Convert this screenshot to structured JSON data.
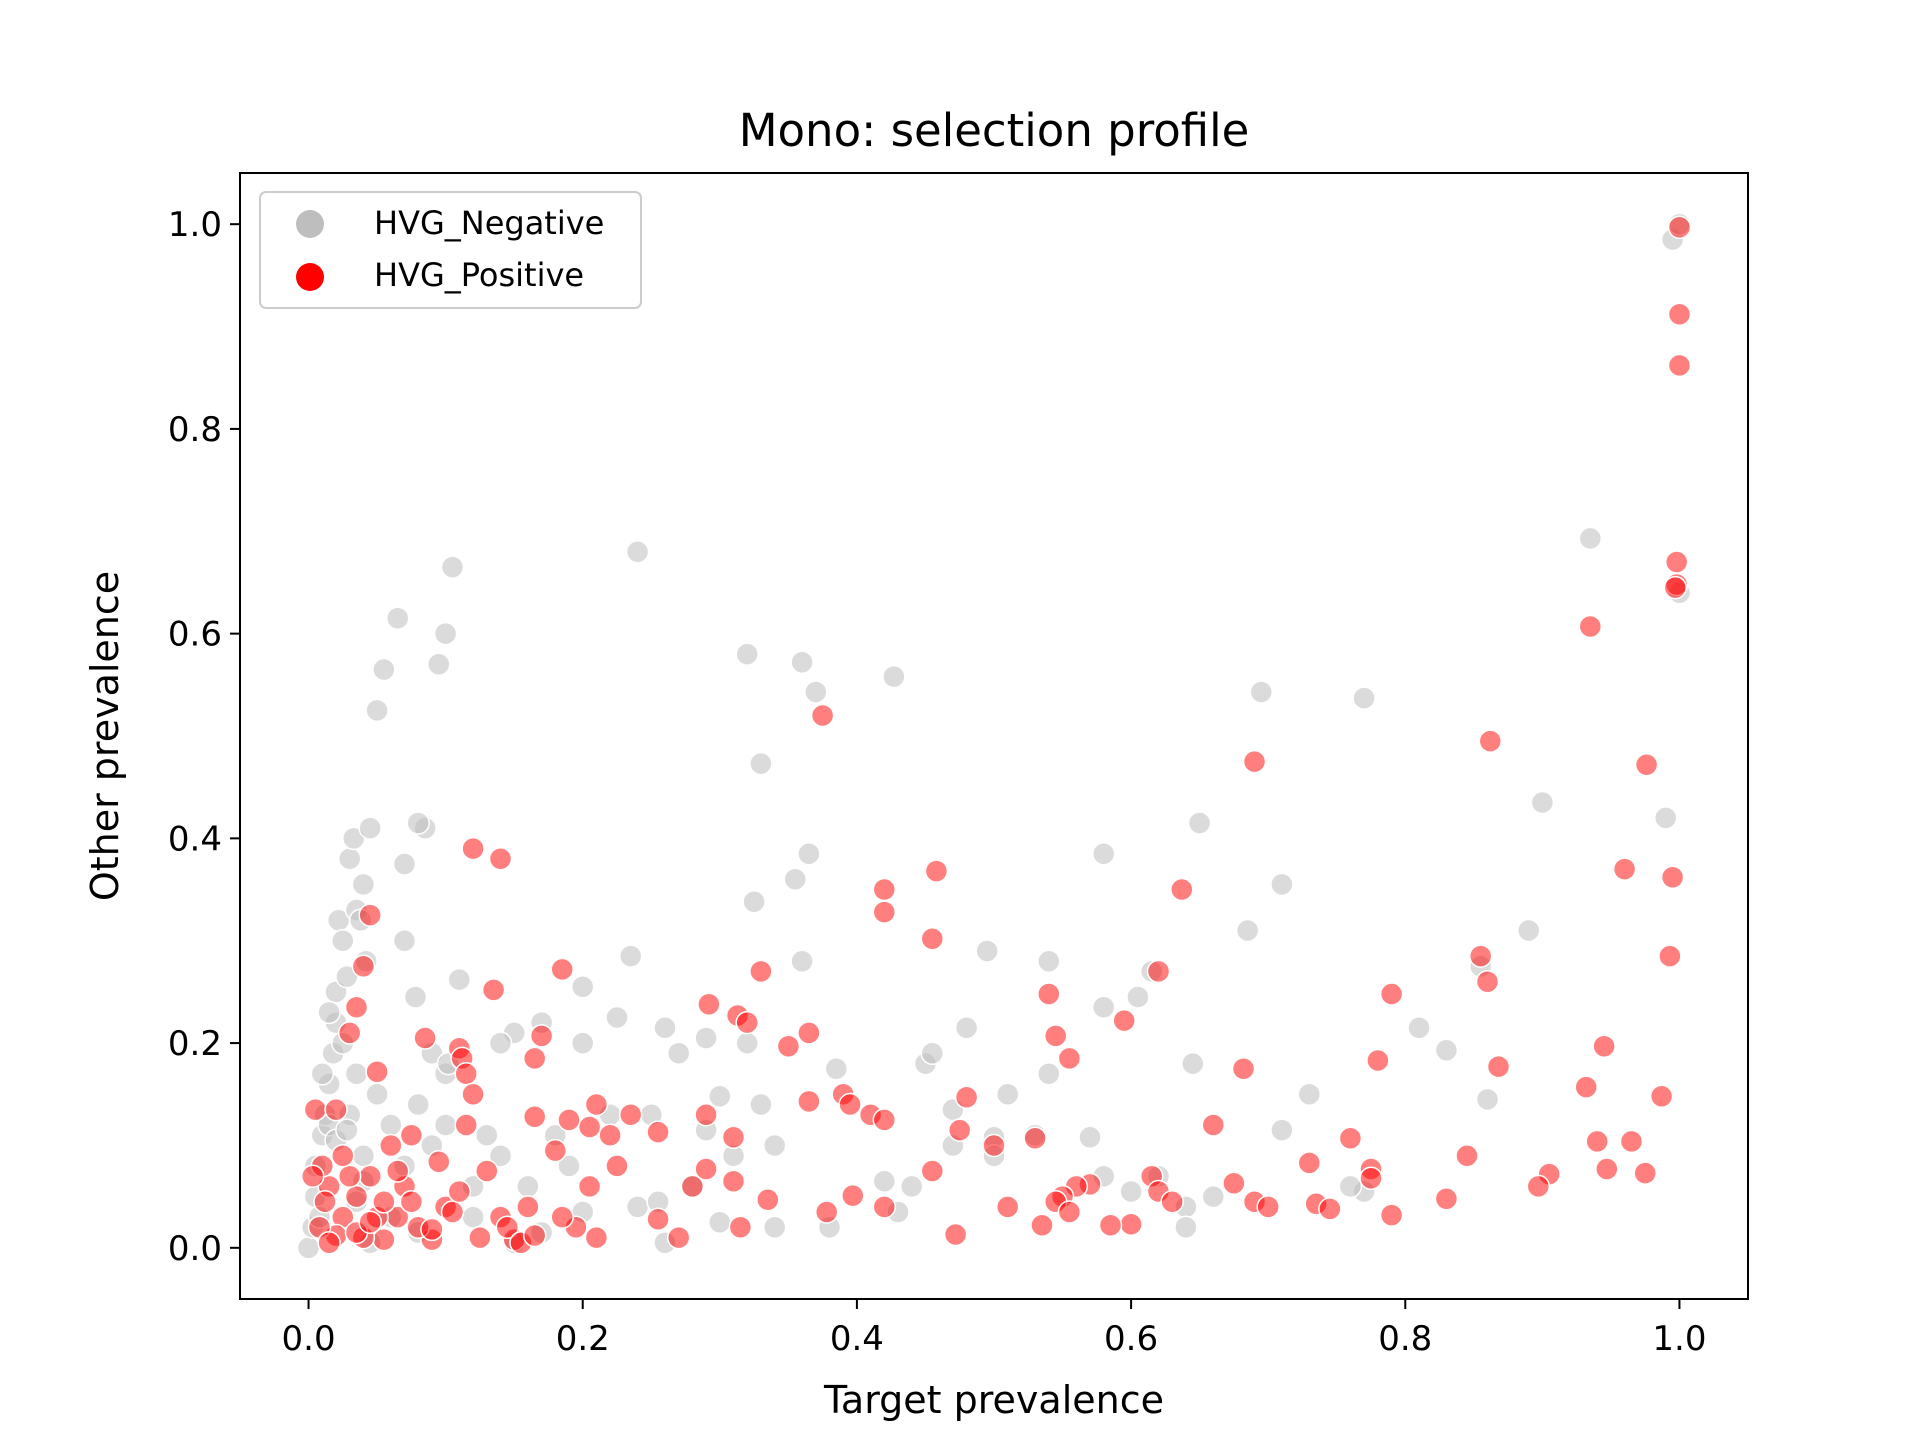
{
  "chart_data": {
    "type": "scatter",
    "title": "Mono: selection profile",
    "xlabel": "Target prevalence",
    "ylabel": "Other prevalence",
    "xlim": [
      -0.05,
      1.05
    ],
    "ylim": [
      -0.05,
      1.05
    ],
    "xticks": [
      0.0,
      0.2,
      0.4,
      0.6,
      0.8,
      1.0
    ],
    "xtick_labels": [
      "0.0",
      "0.2",
      "0.4",
      "0.6",
      "0.8",
      "1.0"
    ],
    "yticks": [
      0.0,
      0.2,
      0.4,
      0.6,
      0.8,
      1.0
    ],
    "ytick_labels": [
      "0.0",
      "0.2",
      "0.4",
      "0.6",
      "0.8",
      "1.0"
    ],
    "grid": false,
    "legend_position": "top-left",
    "series": [
      {
        "name": "HVG_Negative",
        "color": "#bebebe",
        "points": [
          [
            0.0,
            0.0
          ],
          [
            0.003,
            0.02
          ],
          [
            0.005,
            0.05
          ],
          [
            0.008,
            0.03
          ],
          [
            0.01,
            0.11
          ],
          [
            0.012,
            0.13
          ],
          [
            0.015,
            0.16
          ],
          [
            0.018,
            0.19
          ],
          [
            0.02,
            0.22
          ],
          [
            0.02,
            0.25
          ],
          [
            0.022,
            0.32
          ],
          [
            0.025,
            0.3
          ],
          [
            0.028,
            0.265
          ],
          [
            0.03,
            0.38
          ],
          [
            0.033,
            0.4
          ],
          [
            0.035,
            0.33
          ],
          [
            0.038,
            0.32
          ],
          [
            0.04,
            0.355
          ],
          [
            0.042,
            0.28
          ],
          [
            0.045,
            0.41
          ],
          [
            0.05,
            0.525
          ],
          [
            0.055,
            0.565
          ],
          [
            0.065,
            0.615
          ],
          [
            0.07,
            0.375
          ],
          [
            0.07,
            0.3
          ],
          [
            0.078,
            0.245
          ],
          [
            0.085,
            0.41
          ],
          [
            0.08,
            0.415
          ],
          [
            0.1,
            0.6
          ],
          [
            0.095,
            0.57
          ],
          [
            0.105,
            0.665
          ],
          [
            0.11,
            0.262
          ],
          [
            0.09,
            0.19
          ],
          [
            0.1,
            0.17
          ],
          [
            0.102,
            0.18
          ],
          [
            0.15,
            0.21
          ],
          [
            0.14,
            0.2
          ],
          [
            0.17,
            0.22
          ],
          [
            0.2,
            0.255
          ],
          [
            0.2,
            0.2
          ],
          [
            0.235,
            0.285
          ],
          [
            0.225,
            0.225
          ],
          [
            0.26,
            0.215
          ],
          [
            0.27,
            0.19
          ],
          [
            0.29,
            0.205
          ],
          [
            0.3,
            0.148
          ],
          [
            0.24,
            0.68
          ],
          [
            0.32,
            0.58
          ],
          [
            0.33,
            0.473
          ],
          [
            0.36,
            0.572
          ],
          [
            0.37,
            0.543
          ],
          [
            0.427,
            0.558
          ],
          [
            0.325,
            0.338
          ],
          [
            0.365,
            0.385
          ],
          [
            0.355,
            0.36
          ],
          [
            0.36,
            0.28
          ],
          [
            0.32,
            0.2
          ],
          [
            0.33,
            0.14
          ],
          [
            0.34,
            0.1
          ],
          [
            0.385,
            0.175
          ],
          [
            0.45,
            0.18
          ],
          [
            0.455,
            0.19
          ],
          [
            0.48,
            0.215
          ],
          [
            0.495,
            0.29
          ],
          [
            0.47,
            0.135
          ],
          [
            0.5,
            0.108
          ],
          [
            0.51,
            0.15
          ],
          [
            0.53,
            0.11
          ],
          [
            0.54,
            0.17
          ],
          [
            0.54,
            0.28
          ],
          [
            0.58,
            0.385
          ],
          [
            0.58,
            0.235
          ],
          [
            0.605,
            0.245
          ],
          [
            0.615,
            0.27
          ],
          [
            0.645,
            0.18
          ],
          [
            0.65,
            0.415
          ],
          [
            0.685,
            0.31
          ],
          [
            0.695,
            0.543
          ],
          [
            0.71,
            0.355
          ],
          [
            0.71,
            0.115
          ],
          [
            0.73,
            0.15
          ],
          [
            0.77,
            0.537
          ],
          [
            0.81,
            0.215
          ],
          [
            0.83,
            0.193
          ],
          [
            0.855,
            0.275
          ],
          [
            0.86,
            0.145
          ],
          [
            0.89,
            0.31
          ],
          [
            0.9,
            0.435
          ],
          [
            0.935,
            0.693
          ],
          [
            0.99,
            0.42
          ],
          [
            0.995,
            0.985
          ],
          [
            1.0,
            1.0
          ],
          [
            1.0,
            0.64
          ],
          [
            0.57,
            0.108
          ],
          [
            0.62,
            0.07
          ],
          [
            0.64,
            0.04
          ],
          [
            0.58,
            0.07
          ],
          [
            0.5,
            0.09
          ],
          [
            0.44,
            0.06
          ],
          [
            0.42,
            0.065
          ],
          [
            0.38,
            0.02
          ],
          [
            0.34,
            0.02
          ],
          [
            0.3,
            0.025
          ],
          [
            0.26,
            0.005
          ],
          [
            0.24,
            0.04
          ],
          [
            0.22,
            0.13
          ],
          [
            0.25,
            0.13
          ],
          [
            0.29,
            0.115
          ],
          [
            0.2,
            0.035
          ],
          [
            0.19,
            0.08
          ],
          [
            0.18,
            0.11
          ],
          [
            0.16,
            0.06
          ],
          [
            0.14,
            0.09
          ],
          [
            0.12,
            0.06
          ],
          [
            0.13,
            0.11
          ],
          [
            0.1,
            0.12
          ],
          [
            0.09,
            0.1
          ],
          [
            0.08,
            0.14
          ],
          [
            0.07,
            0.08
          ],
          [
            0.06,
            0.12
          ],
          [
            0.05,
            0.15
          ],
          [
            0.04,
            0.09
          ],
          [
            0.03,
            0.13
          ],
          [
            0.035,
            0.17
          ],
          [
            0.025,
            0.2
          ],
          [
            0.015,
            0.23
          ],
          [
            0.01,
            0.17
          ],
          [
            0.005,
            0.08
          ],
          [
            0.15,
            0.005
          ],
          [
            0.17,
            0.015
          ],
          [
            0.12,
            0.03
          ],
          [
            0.08,
            0.015
          ],
          [
            0.06,
            0.03
          ],
          [
            0.045,
            0.005
          ],
          [
            0.035,
            0.045
          ],
          [
            0.28,
            0.06
          ],
          [
            0.255,
            0.045
          ],
          [
            0.31,
            0.09
          ],
          [
            0.43,
            0.035
          ],
          [
            0.47,
            0.1
          ],
          [
            0.6,
            0.055
          ],
          [
            0.64,
            0.02
          ],
          [
            0.77,
            0.055
          ],
          [
            0.76,
            0.06
          ],
          [
            0.66,
            0.05
          ],
          [
            0.015,
            0.12
          ],
          [
            0.02,
            0.105
          ],
          [
            0.028,
            0.115
          ],
          [
            0.04,
            0.065
          ]
        ]
      },
      {
        "name": "HVG_Positive",
        "color": "#ff0000",
        "points": [
          [
            1.0,
            0.997
          ],
          [
            1.0,
            0.912
          ],
          [
            1.0,
            0.862
          ],
          [
            0.998,
            0.67
          ],
          [
            0.998,
            0.648
          ],
          [
            0.997,
            0.645
          ],
          [
            0.935,
            0.607
          ],
          [
            0.976,
            0.472
          ],
          [
            0.862,
            0.495
          ],
          [
            0.69,
            0.475
          ],
          [
            0.375,
            0.52
          ],
          [
            0.12,
            0.39
          ],
          [
            0.14,
            0.38
          ],
          [
            0.458,
            0.368
          ],
          [
            0.42,
            0.35
          ],
          [
            0.42,
            0.328
          ],
          [
            0.455,
            0.302
          ],
          [
            0.637,
            0.35
          ],
          [
            0.96,
            0.37
          ],
          [
            0.995,
            0.362
          ],
          [
            0.993,
            0.285
          ],
          [
            0.855,
            0.285
          ],
          [
            0.86,
            0.26
          ],
          [
            0.045,
            0.325
          ],
          [
            0.04,
            0.275
          ],
          [
            0.035,
            0.235
          ],
          [
            0.03,
            0.21
          ],
          [
            0.05,
            0.172
          ],
          [
            0.135,
            0.252
          ],
          [
            0.185,
            0.272
          ],
          [
            0.33,
            0.27
          ],
          [
            0.292,
            0.238
          ],
          [
            0.313,
            0.227
          ],
          [
            0.32,
            0.22
          ],
          [
            0.365,
            0.21
          ],
          [
            0.35,
            0.197
          ],
          [
            0.54,
            0.248
          ],
          [
            0.545,
            0.207
          ],
          [
            0.555,
            0.185
          ],
          [
            0.595,
            0.222
          ],
          [
            0.62,
            0.27
          ],
          [
            0.79,
            0.248
          ],
          [
            0.78,
            0.183
          ],
          [
            0.945,
            0.197
          ],
          [
            0.868,
            0.177
          ],
          [
            0.682,
            0.175
          ],
          [
            0.932,
            0.157
          ],
          [
            0.987,
            0.148
          ],
          [
            0.085,
            0.205
          ],
          [
            0.11,
            0.195
          ],
          [
            0.112,
            0.185
          ],
          [
            0.115,
            0.17
          ],
          [
            0.12,
            0.15
          ],
          [
            0.165,
            0.185
          ],
          [
            0.17,
            0.207
          ],
          [
            0.21,
            0.14
          ],
          [
            0.365,
            0.143
          ],
          [
            0.39,
            0.15
          ],
          [
            0.395,
            0.14
          ],
          [
            0.41,
            0.13
          ],
          [
            0.42,
            0.125
          ],
          [
            0.48,
            0.147
          ],
          [
            0.475,
            0.115
          ],
          [
            0.5,
            0.1
          ],
          [
            0.53,
            0.107
          ],
          [
            0.66,
            0.12
          ],
          [
            0.76,
            0.107
          ],
          [
            0.845,
            0.09
          ],
          [
            0.94,
            0.104
          ],
          [
            0.965,
            0.104
          ],
          [
            0.975,
            0.073
          ],
          [
            0.947,
            0.077
          ],
          [
            0.905,
            0.072
          ],
          [
            0.897,
            0.06
          ],
          [
            0.79,
            0.032
          ],
          [
            0.83,
            0.048
          ],
          [
            0.775,
            0.077
          ],
          [
            0.775,
            0.068
          ],
          [
            0.735,
            0.043
          ],
          [
            0.745,
            0.038
          ],
          [
            0.73,
            0.083
          ],
          [
            0.69,
            0.045
          ],
          [
            0.7,
            0.04
          ],
          [
            0.675,
            0.063
          ],
          [
            0.615,
            0.07
          ],
          [
            0.62,
            0.055
          ],
          [
            0.63,
            0.045
          ],
          [
            0.6,
            0.023
          ],
          [
            0.585,
            0.022
          ],
          [
            0.57,
            0.062
          ],
          [
            0.56,
            0.06
          ],
          [
            0.55,
            0.05
          ],
          [
            0.545,
            0.045
          ],
          [
            0.555,
            0.035
          ],
          [
            0.535,
            0.022
          ],
          [
            0.51,
            0.04
          ],
          [
            0.472,
            0.013
          ],
          [
            0.455,
            0.075
          ],
          [
            0.42,
            0.04
          ],
          [
            0.397,
            0.051
          ],
          [
            0.378,
            0.035
          ],
          [
            0.335,
            0.047
          ],
          [
            0.315,
            0.02
          ],
          [
            0.31,
            0.065
          ],
          [
            0.31,
            0.108
          ],
          [
            0.29,
            0.077
          ],
          [
            0.29,
            0.13
          ],
          [
            0.28,
            0.06
          ],
          [
            0.27,
            0.01
          ],
          [
            0.255,
            0.028
          ],
          [
            0.255,
            0.113
          ],
          [
            0.235,
            0.13
          ],
          [
            0.225,
            0.08
          ],
          [
            0.22,
            0.11
          ],
          [
            0.205,
            0.06
          ],
          [
            0.205,
            0.118
          ],
          [
            0.21,
            0.01
          ],
          [
            0.195,
            0.02
          ],
          [
            0.185,
            0.03
          ],
          [
            0.18,
            0.095
          ],
          [
            0.165,
            0.128
          ],
          [
            0.16,
            0.04
          ],
          [
            0.15,
            0.008
          ],
          [
            0.14,
            0.03
          ],
          [
            0.125,
            0.01
          ],
          [
            0.115,
            0.12
          ],
          [
            0.1,
            0.04
          ],
          [
            0.095,
            0.084
          ],
          [
            0.09,
            0.008
          ],
          [
            0.08,
            0.02
          ],
          [
            0.075,
            0.11
          ],
          [
            0.07,
            0.06
          ],
          [
            0.065,
            0.03
          ],
          [
            0.06,
            0.1
          ],
          [
            0.055,
            0.008
          ],
          [
            0.05,
            0.03
          ],
          [
            0.045,
            0.07
          ],
          [
            0.04,
            0.01
          ],
          [
            0.035,
            0.05
          ],
          [
            0.03,
            0.07
          ],
          [
            0.025,
            0.03
          ],
          [
            0.02,
            0.012
          ],
          [
            0.015,
            0.06
          ],
          [
            0.01,
            0.08
          ],
          [
            0.008,
            0.02
          ],
          [
            0.005,
            0.135
          ],
          [
            0.003,
            0.07
          ],
          [
            0.02,
            0.135
          ],
          [
            0.015,
            0.005
          ],
          [
            0.035,
            0.015
          ],
          [
            0.045,
            0.025
          ],
          [
            0.055,
            0.045
          ],
          [
            0.065,
            0.075
          ],
          [
            0.075,
            0.045
          ],
          [
            0.09,
            0.018
          ],
          [
            0.105,
            0.035
          ],
          [
            0.13,
            0.075
          ],
          [
            0.145,
            0.02
          ],
          [
            0.155,
            0.005
          ],
          [
            0.165,
            0.012
          ],
          [
            0.19,
            0.125
          ],
          [
            0.11,
            0.055
          ],
          [
            0.025,
            0.09
          ],
          [
            0.012,
            0.045
          ]
        ]
      }
    ]
  }
}
